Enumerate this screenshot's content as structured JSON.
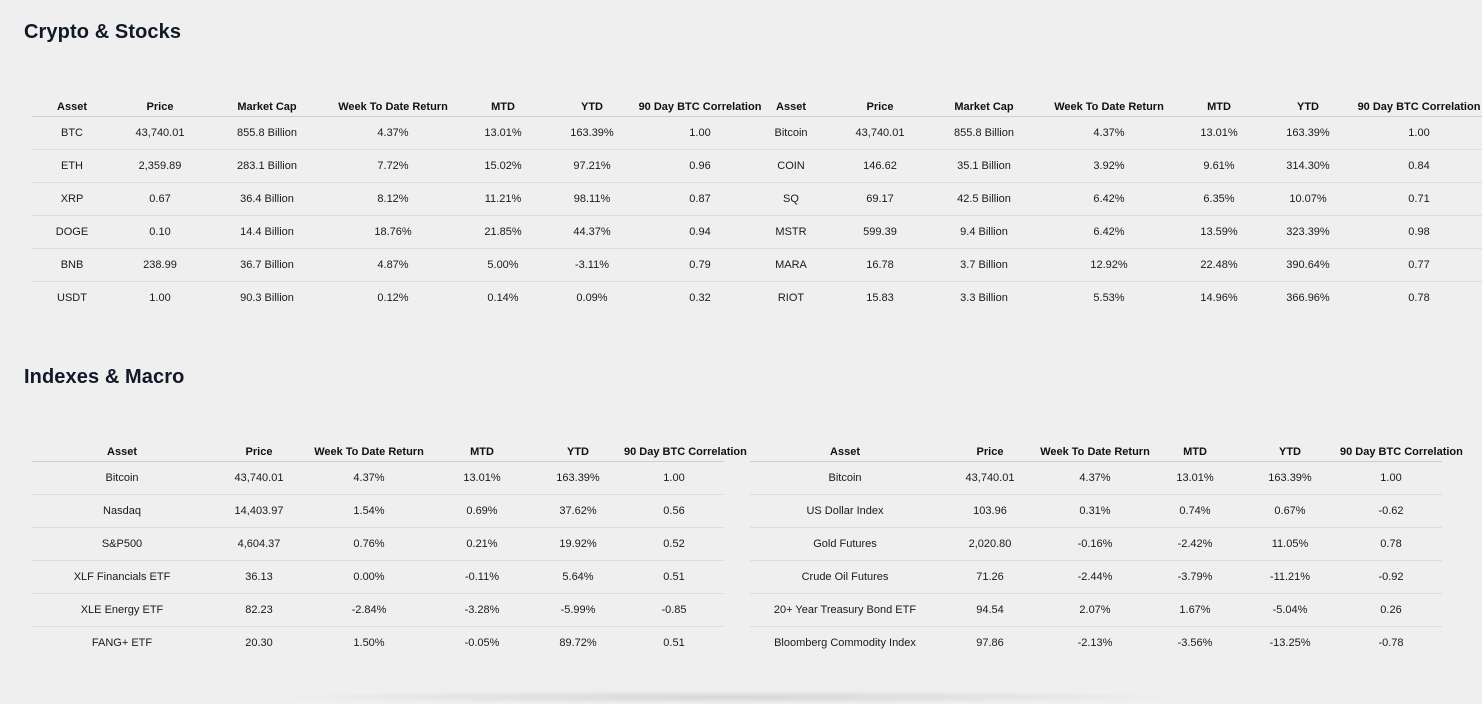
{
  "sections": {
    "crypto_title": "Crypto & Stocks",
    "indexes_title": "Indexes & Macro"
  },
  "tables": {
    "crypto": {
      "headers": [
        "Asset",
        "Price",
        "Market Cap",
        "Week To Date Return",
        "MTD",
        "YTD",
        "90 Day BTC Correlation"
      ],
      "rows": [
        [
          "BTC",
          "43,740.01",
          "855.8 Billion",
          "4.37%",
          "13.01%",
          "163.39%",
          "1.00"
        ],
        [
          "ETH",
          "2,359.89",
          "283.1 Billion",
          "7.72%",
          "15.02%",
          "97.21%",
          "0.96"
        ],
        [
          "XRP",
          "0.67",
          "36.4 Billion",
          "8.12%",
          "11.21%",
          "98.11%",
          "0.87"
        ],
        [
          "DOGE",
          "0.10",
          "14.4 Billion",
          "18.76%",
          "21.85%",
          "44.37%",
          "0.94"
        ],
        [
          "BNB",
          "238.99",
          "36.7 Billion",
          "4.87%",
          "5.00%",
          "-3.11%",
          "0.79"
        ],
        [
          "USDT",
          "1.00",
          "90.3 Billion",
          "0.12%",
          "0.14%",
          "0.09%",
          "0.32"
        ]
      ]
    },
    "stocks": {
      "headers": [
        "Asset",
        "Price",
        "Market Cap",
        "Week To Date Return",
        "MTD",
        "YTD",
        "90 Day BTC Correlation"
      ],
      "rows": [
        [
          "Bitcoin",
          "43,740.01",
          "855.8 Billion",
          "4.37%",
          "13.01%",
          "163.39%",
          "1.00"
        ],
        [
          "COIN",
          "146.62",
          "35.1 Billion",
          "3.92%",
          "9.61%",
          "314.30%",
          "0.84"
        ],
        [
          "SQ",
          "69.17",
          "42.5 Billion",
          "6.42%",
          "6.35%",
          "10.07%",
          "0.71"
        ],
        [
          "MSTR",
          "599.39",
          "9.4 Billion",
          "6.42%",
          "13.59%",
          "323.39%",
          "0.98"
        ],
        [
          "MARA",
          "16.78",
          "3.7 Billion",
          "12.92%",
          "22.48%",
          "390.64%",
          "0.77"
        ],
        [
          "RIOT",
          "15.83",
          "3.3 Billion",
          "5.53%",
          "14.96%",
          "366.96%",
          "0.78"
        ]
      ]
    },
    "indexes": {
      "headers": [
        "Asset",
        "Price",
        "Week To Date Return",
        "MTD",
        "YTD",
        "90 Day BTC Correlation"
      ],
      "rows": [
        [
          "Bitcoin",
          "43,740.01",
          "4.37%",
          "13.01%",
          "163.39%",
          "1.00"
        ],
        [
          "Nasdaq",
          "14,403.97",
          "1.54%",
          "0.69%",
          "37.62%",
          "0.56"
        ],
        [
          "S&P500",
          "4,604.37",
          "0.76%",
          "0.21%",
          "19.92%",
          "0.52"
        ],
        [
          "XLF Financials ETF",
          "36.13",
          "0.00%",
          "-0.11%",
          "5.64%",
          "0.51"
        ],
        [
          "XLE Energy ETF",
          "82.23",
          "-2.84%",
          "-3.28%",
          "-5.99%",
          "-0.85"
        ],
        [
          "FANG+ ETF",
          "20.30",
          "1.50%",
          "-0.05%",
          "89.72%",
          "0.51"
        ]
      ]
    },
    "macro": {
      "headers": [
        "Asset",
        "Price",
        "Week To Date Return",
        "MTD",
        "YTD",
        "90 Day BTC Correlation"
      ],
      "rows": [
        [
          "Bitcoin",
          "43,740.01",
          "4.37%",
          "13.01%",
          "163.39%",
          "1.00"
        ],
        [
          "US Dollar Index",
          "103.96",
          "0.31%",
          "0.74%",
          "0.67%",
          "-0.62"
        ],
        [
          "Gold Futures",
          "2,020.80",
          "-0.16%",
          "-2.42%",
          "11.05%",
          "0.78"
        ],
        [
          "Crude Oil Futures",
          "71.26",
          "-2.44%",
          "-3.79%",
          "-11.21%",
          "-0.92"
        ],
        [
          "20+ Year Treasury Bond ETF",
          "94.54",
          "2.07%",
          "1.67%",
          "-5.04%",
          "0.26"
        ],
        [
          "Bloomberg Commodity Index",
          "97.86",
          "-2.13%",
          "-3.56%",
          "-13.25%",
          "-0.78"
        ]
      ]
    }
  },
  "colors": {
    "positive": "#1f7a1f",
    "negative": "#d21f1f",
    "neutral": "#1a1a1a",
    "background": "#efefef"
  }
}
